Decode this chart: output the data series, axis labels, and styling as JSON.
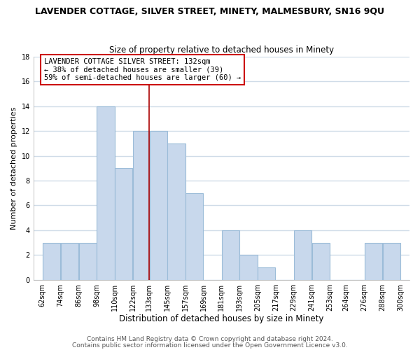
{
  "title": "LAVENDER COTTAGE, SILVER STREET, MINETY, MALMESBURY, SN16 9QU",
  "subtitle": "Size of property relative to detached houses in Minety",
  "xlabel": "Distribution of detached houses by size in Minety",
  "ylabel": "Number of detached properties",
  "bar_color": "#c8d8ec",
  "bar_edge_color": "#9bbcd8",
  "bins": [
    62,
    74,
    86,
    98,
    110,
    122,
    133,
    145,
    157,
    169,
    181,
    193,
    205,
    217,
    229,
    241,
    253,
    264,
    276,
    288,
    300
  ],
  "counts": [
    3,
    3,
    3,
    14,
    9,
    12,
    12,
    11,
    7,
    0,
    4,
    2,
    1,
    0,
    4,
    3,
    0,
    0,
    3,
    3
  ],
  "tick_labels": [
    "62sqm",
    "74sqm",
    "86sqm",
    "98sqm",
    "110sqm",
    "122sqm",
    "133sqm",
    "145sqm",
    "157sqm",
    "169sqm",
    "181sqm",
    "193sqm",
    "205sqm",
    "217sqm",
    "229sqm",
    "241sqm",
    "253sqm",
    "264sqm",
    "276sqm",
    "288sqm",
    "300sqm"
  ],
  "vline_x": 133,
  "vline_color": "#aa0000",
  "annotation_text": "LAVENDER COTTAGE SILVER STREET: 132sqm\n← 38% of detached houses are smaller (39)\n59% of semi-detached houses are larger (60) →",
  "annotation_box_color": "#ffffff",
  "annotation_box_edge": "#cc0000",
  "ylim": [
    0,
    18
  ],
  "yticks": [
    0,
    2,
    4,
    6,
    8,
    10,
    12,
    14,
    16,
    18
  ],
  "footer1": "Contains HM Land Registry data © Crown copyright and database right 2024.",
  "footer2": "Contains public sector information licensed under the Open Government Licence v3.0.",
  "plot_bg_color": "#ffffff",
  "fig_bg_color": "#ffffff",
  "grid_color": "#d0dce8",
  "title_fontsize": 9,
  "subtitle_fontsize": 8.5,
  "xlabel_fontsize": 8.5,
  "ylabel_fontsize": 8,
  "tick_fontsize": 7,
  "footer_fontsize": 6.5,
  "annotation_fontsize": 7.5
}
